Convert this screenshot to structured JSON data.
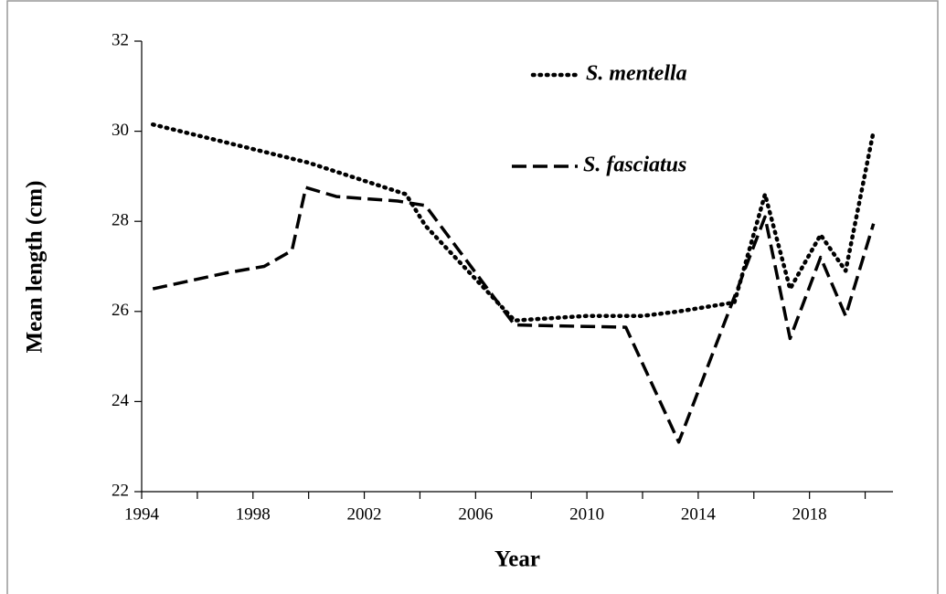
{
  "chart_data": {
    "type": "line",
    "x_label": "Year",
    "y_label": "Mean length (cm)",
    "xlim": [
      1994,
      2021
    ],
    "xticks": [
      1994,
      1998,
      2002,
      2006,
      2010,
      2014,
      2018
    ],
    "xminor_ticks": [
      1996,
      2000,
      2004,
      2008,
      2012,
      2016,
      2020
    ],
    "ylim": [
      22,
      32
    ],
    "yticks": [
      22,
      24,
      26,
      28,
      30,
      32
    ],
    "grid": false,
    "legend": "top",
    "series": [
      {
        "name": "S. mentella",
        "color": "#000000",
        "style": "dotted",
        "x": [
          1994.4,
          2000,
          2003.5,
          2004.2,
          2007.4,
          2010,
          2012,
          2013.3,
          2015.3,
          2016.4,
          2017.3,
          2018.4,
          2019.3,
          2020.3
        ],
        "values": [
          30.15,
          29.3,
          28.6,
          27.9,
          25.8,
          25.9,
          25.9,
          26.0,
          26.2,
          28.6,
          26.5,
          27.7,
          26.9,
          30.0
        ]
      },
      {
        "name": "S. fasciatus",
        "color": "#000000",
        "style": "dashed",
        "x": [
          1994.4,
          1997,
          1998.4,
          1999.4,
          1999.9,
          2001,
          2003.2,
          2004.2,
          2007.4,
          2011.4,
          2013.3,
          2016.4,
          2017.3,
          2018.4,
          2019.3,
          2020.3
        ],
        "values": [
          26.5,
          26.85,
          27.0,
          27.35,
          28.75,
          28.55,
          28.45,
          28.35,
          25.7,
          25.65,
          23.1,
          28.1,
          25.4,
          27.2,
          25.9,
          27.95
        ]
      }
    ]
  }
}
